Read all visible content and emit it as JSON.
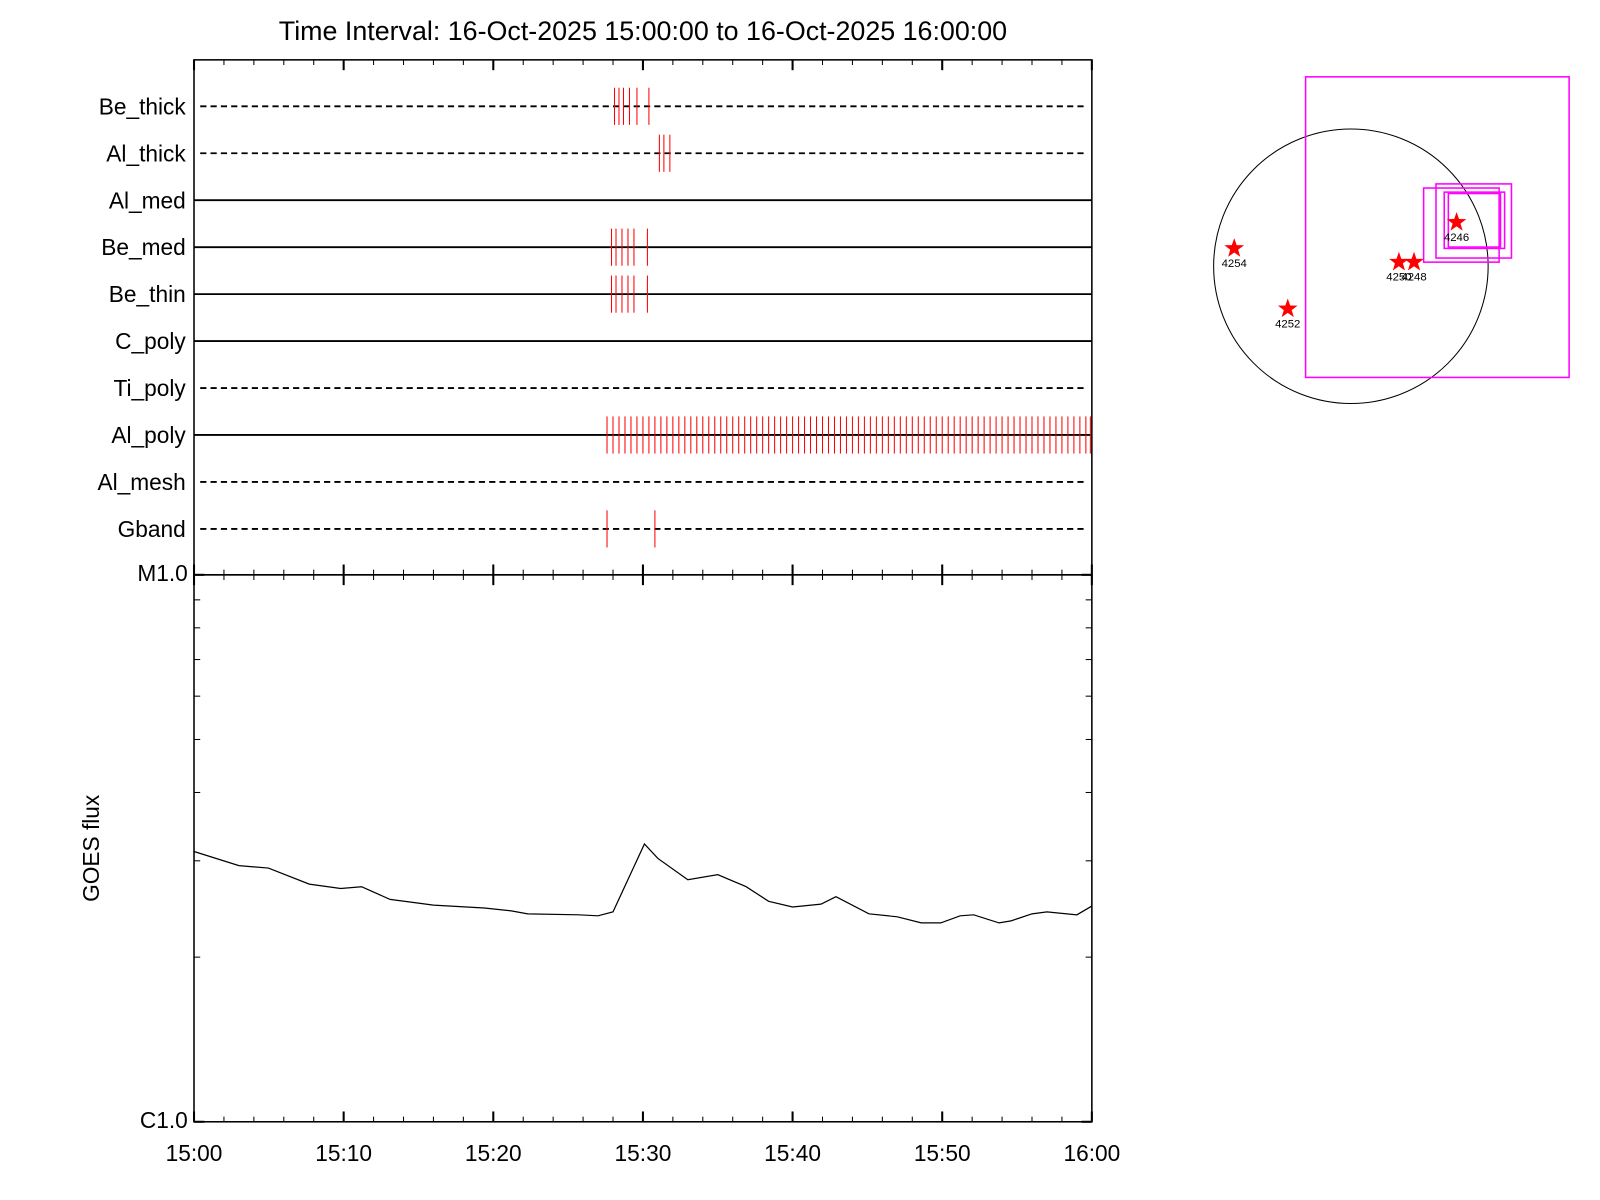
{
  "chart_data": [
    {
      "type": "timeline",
      "title": "Time Interval: 16-Oct-2025 15:00:00 to 16-Oct-2025 16:00:00",
      "xlim": [
        0,
        60
      ],
      "xticks": [
        0,
        10,
        20,
        30,
        40,
        50,
        60
      ],
      "xminorticks": [
        2,
        4,
        6,
        8,
        12,
        14,
        16,
        18,
        22,
        24,
        26,
        28,
        32,
        34,
        36,
        38,
        42,
        44,
        46,
        48,
        52,
        54,
        56,
        58
      ],
      "color": "#ff0000",
      "rows": [
        {
          "name": "Be_thick",
          "style": "dashed",
          "times": [
            28.1,
            28.4,
            28.7,
            29.1,
            29.6,
            30.4
          ]
        },
        {
          "name": "Al_thick",
          "style": "dashed",
          "times": [
            31.1,
            31.4,
            31.8
          ]
        },
        {
          "name": "Al_med",
          "style": "solid",
          "times": []
        },
        {
          "name": "Be_med",
          "style": "solid",
          "times": [
            27.9,
            28.2,
            28.6,
            29.0,
            29.4,
            30.3
          ]
        },
        {
          "name": "Be_thin",
          "style": "solid",
          "times": [
            27.9,
            28.2,
            28.6,
            29.0,
            29.4,
            30.3
          ]
        },
        {
          "name": "C_poly",
          "style": "solid",
          "times": []
        },
        {
          "name": "Ti_poly",
          "style": "dashed",
          "times": []
        },
        {
          "name": "Al_poly",
          "style": "solid",
          "times": [
            27.6,
            28.0,
            28.4,
            28.8,
            29.2,
            29.6,
            30.0,
            30.4,
            30.8,
            31.2,
            31.6,
            32.0,
            32.4,
            32.8,
            33.2,
            33.6,
            34.0,
            34.4,
            34.8,
            35.2,
            35.6,
            36.0,
            36.4,
            36.8,
            37.2,
            37.6,
            38.0,
            38.4,
            38.8,
            39.2,
            39.6,
            40.0,
            40.4,
            40.8,
            41.2,
            41.6,
            42.0,
            42.4,
            42.8,
            43.2,
            43.6,
            44.0,
            44.4,
            44.8,
            45.2,
            45.6,
            46.0,
            46.4,
            46.8,
            47.2,
            47.6,
            48.0,
            48.4,
            48.8,
            49.2,
            49.6,
            50.0,
            50.4,
            50.8,
            51.2,
            51.6,
            52.0,
            52.4,
            52.8,
            53.2,
            53.6,
            54.0,
            54.4,
            54.8,
            55.2,
            55.6,
            56.0,
            56.4,
            56.8,
            57.2,
            57.6,
            58.0,
            58.4,
            58.8,
            59.2,
            59.6,
            59.9
          ]
        },
        {
          "name": "Al_mesh",
          "style": "dashed",
          "times": []
        },
        {
          "name": "Gband",
          "style": "dashed",
          "times": [
            27.6,
            30.8
          ]
        }
      ]
    },
    {
      "type": "line",
      "y_label": "GOES flux",
      "log_y": true,
      "xlim": [
        0,
        60
      ],
      "xticks": [
        {
          "value": 0,
          "label": "15:00"
        },
        {
          "value": 10,
          "label": "15:10"
        },
        {
          "value": 20,
          "label": "15:20"
        },
        {
          "value": 30,
          "label": "15:30"
        },
        {
          "value": 40,
          "label": "15:40"
        },
        {
          "value": 50,
          "label": "15:50"
        },
        {
          "value": 60,
          "label": "16:00"
        }
      ],
      "xminorticks": [
        2,
        4,
        6,
        8,
        12,
        14,
        16,
        18,
        22,
        24,
        26,
        28,
        32,
        34,
        36,
        38,
        42,
        44,
        46,
        48,
        52,
        54,
        56,
        58
      ],
      "ylim": [
        1e-06,
        1e-05
      ],
      "yticks": [
        {
          "value": 1e-06,
          "label": "C1.0"
        },
        {
          "value": 1e-05,
          "label": "M1.0"
        }
      ],
      "yminorticks": [
        2e-06,
        3e-06,
        4e-06,
        5e-06,
        6e-06,
        7e-06,
        8e-06,
        9e-06
      ],
      "x": [
        0,
        3.0,
        4.97,
        7.7,
        9.8,
        11.2,
        13.1,
        16.0,
        19.4,
        21.2,
        22.3,
        25.7,
        27.0,
        28.0,
        30.1,
        31.0,
        33.0,
        35.0,
        36.9,
        38.4,
        40.0,
        41.9,
        42.9,
        45.1,
        47.0,
        48.6,
        49.9,
        51.2,
        52.1,
        53.8,
        54.6,
        56.0,
        57.0,
        59.0,
        60.0
      ],
      "series": [
        {
          "color": "#000000",
          "values": [
            3.12e-06,
            2.94e-06,
            2.91e-06,
            2.72e-06,
            2.67e-06,
            2.69e-06,
            2.55e-06,
            2.49e-06,
            2.46e-06,
            2.43e-06,
            2.4e-06,
            2.39e-06,
            2.38e-06,
            2.42e-06,
            3.22e-06,
            3.03e-06,
            2.77e-06,
            2.83e-06,
            2.69e-06,
            2.53e-06,
            2.47e-06,
            2.5e-06,
            2.58e-06,
            2.4e-06,
            2.37e-06,
            2.31e-06,
            2.31e-06,
            2.38e-06,
            2.39e-06,
            2.31e-06,
            2.33e-06,
            2.4e-06,
            2.42e-06,
            2.39e-06,
            2.48e-06
          ]
        }
      ]
    },
    {
      "type": "map",
      "point_color": "#ff0000",
      "box_color": "#ff00ff",
      "points": [
        {
          "label": "4254",
          "x": -0.85,
          "y": 0.13
        },
        {
          "label": "4252",
          "x": -0.46,
          "y": -0.31
        },
        {
          "label": "4250",
          "x": 0.35,
          "y": 0.03
        },
        {
          "label": "4248",
          "x": 0.46,
          "y": 0.03
        },
        {
          "label": "4246",
          "x": 0.77,
          "y": 0.32
        }
      ],
      "boxes": [
        {
          "x": [
            -0.33,
            1.59
          ],
          "y": [
            -0.81,
            1.38
          ]
        },
        {
          "x": [
            0.53,
            1.08
          ],
          "y": [
            0.03,
            0.57
          ]
        },
        {
          "x": [
            0.62,
            1.17
          ],
          "y": [
            0.06,
            0.6
          ]
        },
        {
          "x": [
            0.68,
            1.12
          ],
          "y": [
            0.13,
            0.54
          ]
        },
        {
          "x": [
            0.71,
            1.09
          ],
          "y": [
            0.14,
            0.53
          ]
        }
      ]
    }
  ]
}
